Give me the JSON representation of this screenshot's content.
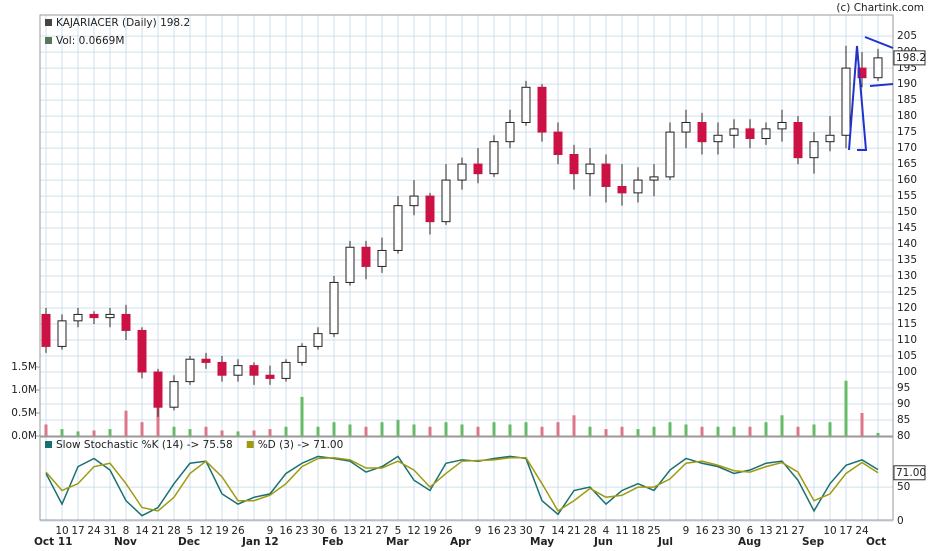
{
  "chart_data": [
    {
      "type": "candlestick",
      "title": "KAJARIACER (Daily) 198.2",
      "subtitle": "Vol: 0.0669M",
      "source": "(c) Chartink.com",
      "categories": [
        null,
        "10",
        "17",
        "24",
        "31",
        "8",
        "14",
        "21",
        "28",
        "5",
        "12",
        "19",
        "26",
        null,
        "9",
        "16",
        "23",
        "30",
        "6",
        "13",
        "21",
        "27",
        "5",
        "12",
        "19",
        "26",
        null,
        "9",
        "16",
        "23",
        "30",
        "7",
        "14",
        "21",
        "28",
        "4",
        "11",
        "18",
        "25",
        null,
        "9",
        "16",
        "23",
        "30",
        "6",
        "13",
        "21",
        "27",
        null,
        "10",
        "17",
        "24",
        null
      ],
      "month_labels": [
        "Oct 11",
        null,
        null,
        null,
        null,
        "Nov",
        null,
        null,
        null,
        "Dec",
        null,
        null,
        null,
        "Jan 12",
        null,
        null,
        null,
        null,
        "Feb",
        null,
        null,
        null,
        "Mar",
        null,
        null,
        null,
        "Apr",
        null,
        null,
        null,
        null,
        "May",
        null,
        null,
        null,
        "Jun",
        null,
        null,
        null,
        "Jul",
        null,
        null,
        null,
        null,
        "Aug",
        null,
        null,
        null,
        "Sep",
        null,
        null,
        null,
        "Oct"
      ],
      "open": [
        118,
        108,
        116,
        118,
        117,
        118,
        113,
        100,
        89,
        97,
        104,
        103,
        99,
        102,
        99,
        98,
        103,
        108,
        112,
        128,
        139,
        133,
        138,
        152,
        155,
        147,
        160,
        165,
        162,
        172,
        178,
        189,
        175,
        168,
        162,
        165,
        158,
        156,
        160,
        161,
        175,
        178,
        172,
        174,
        176,
        173,
        176,
        178,
        167,
        172,
        174,
        195,
        192
      ],
      "high": [
        120,
        118,
        120,
        119,
        120,
        121,
        114,
        101,
        99,
        105,
        106,
        105,
        104,
        103,
        102,
        104,
        109,
        114,
        130,
        141,
        141,
        142,
        155,
        160,
        156,
        165,
        167,
        170,
        174,
        182,
        191,
        190,
        178,
        171,
        170,
        168,
        165,
        164,
        165,
        178,
        182,
        181,
        178,
        179,
        179,
        178,
        182,
        180,
        175,
        180,
        202,
        200,
        201
      ],
      "low": [
        106,
        107,
        114,
        115,
        114,
        110,
        98,
        86,
        88,
        96,
        101,
        97,
        97,
        96,
        96,
        97,
        102,
        107,
        111,
        127,
        129,
        131,
        137,
        149,
        143,
        146,
        157,
        159,
        161,
        170,
        177,
        172,
        165,
        157,
        155,
        153,
        152,
        153,
        155,
        160,
        170,
        168,
        168,
        170,
        170,
        171,
        172,
        165,
        162,
        169,
        170,
        189,
        191
      ],
      "close": [
        108,
        116,
        118,
        117,
        118,
        113,
        100,
        89,
        97,
        104,
        103,
        99,
        102,
        99,
        98,
        103,
        108,
        112,
        128,
        139,
        133,
        138,
        152,
        155,
        147,
        160,
        165,
        162,
        172,
        178,
        189,
        175,
        168,
        162,
        165,
        158,
        156,
        160,
        161,
        175,
        178,
        172,
        174,
        176,
        173,
        176,
        178,
        167,
        172,
        174,
        195,
        192,
        198.2
      ],
      "up_color": "#ffffff",
      "down_color": "#cc1144",
      "ylim": [
        80,
        211.6
      ],
      "yticks": [
        80,
        85,
        90,
        95,
        100,
        105,
        110,
        115,
        120,
        125,
        130,
        135,
        140,
        145,
        150,
        155,
        160,
        165,
        170,
        175,
        180,
        185,
        190,
        195,
        200,
        205
      ],
      "grid": true,
      "volume": {
        "values": [
          0.25,
          0.15,
          0.1,
          0.12,
          0.15,
          0.55,
          0.3,
          0.7,
          0.2,
          0.15,
          0.2,
          0.12,
          0.1,
          0.12,
          0.15,
          0.2,
          0.85,
          0.2,
          0.3,
          0.25,
          0.2,
          0.3,
          0.35,
          0.25,
          0.2,
          0.3,
          0.25,
          0.2,
          0.3,
          0.25,
          0.3,
          0.2,
          0.3,
          0.45,
          0.2,
          0.15,
          0.2,
          0.15,
          0.2,
          0.3,
          0.25,
          0.2,
          0.2,
          0.2,
          0.2,
          0.3,
          0.45,
          0.2,
          0.25,
          0.3,
          1.2,
          0.5,
          0.0669
        ],
        "ylim": [
          0,
          9.15
        ],
        "yticks": [
          {
            "value": 0,
            "label": "0.0M"
          },
          {
            "value": 0.5,
            "label": "0.5M"
          },
          {
            "value": 1,
            "label": "1.0M"
          },
          {
            "value": 1.5,
            "label": "1.5M"
          }
        ],
        "up_color": "#66bb66",
        "down_color": "#dd7788"
      }
    },
    {
      "type": "line",
      "series": [
        {
          "name": "Slow Stochastic %K (14) -> 75.58",
          "color": "#1a7070",
          "values": [
            70,
            25,
            80,
            92,
            75,
            30,
            8,
            20,
            55,
            85,
            88,
            40,
            25,
            35,
            40,
            70,
            85,
            95,
            92,
            88,
            72,
            80,
            95,
            60,
            45,
            85,
            90,
            88,
            92,
            95,
            92,
            30,
            10,
            45,
            50,
            25,
            45,
            55,
            45,
            75,
            92,
            85,
            80,
            70,
            75,
            85,
            88,
            60,
            15,
            55,
            82,
            90,
            75.58
          ]
        },
        {
          "name": "%D (3) -> 71.00",
          "color": "#a09a10",
          "values": [
            72,
            45,
            55,
            80,
            85,
            55,
            20,
            15,
            35,
            70,
            88,
            65,
            30,
            30,
            38,
            55,
            80,
            92,
            93,
            90,
            78,
            78,
            88,
            75,
            50,
            70,
            88,
            89,
            90,
            93,
            93,
            55,
            15,
            30,
            48,
            35,
            38,
            50,
            50,
            62,
            85,
            88,
            82,
            74,
            72,
            80,
            86,
            72,
            30,
            40,
            70,
            86,
            71
          ],
          "value_labels": [
            null,
            null,
            null,
            null,
            null,
            null,
            null,
            null,
            null,
            null,
            null,
            null,
            null,
            null,
            null,
            null,
            null,
            null,
            null,
            null,
            null,
            null,
            null,
            null,
            null,
            null,
            null,
            null,
            null,
            null,
            null,
            null,
            null,
            null,
            null,
            null,
            null,
            null,
            null,
            null,
            null,
            null,
            null,
            null,
            null,
            null,
            null,
            null,
            null,
            null,
            null,
            null,
            "71.00"
          ]
        }
      ],
      "ylim": [
        -13,
        123.5
      ],
      "yticks": [
        0,
        50
      ],
      "grid": true
    }
  ]
}
